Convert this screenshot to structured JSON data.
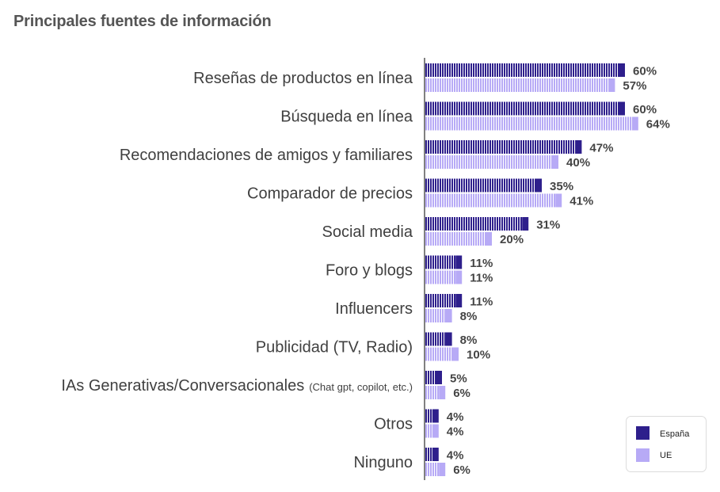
{
  "chart_data": {
    "type": "bar",
    "orientation": "horizontal",
    "title": "Principales fuentes de información",
    "categories": [
      "Reseñas de productos en línea",
      "Búsqueda en línea",
      "Recomendaciones de amigos y familiares",
      "Comparador de precios",
      "Social media",
      "Foro y blogs",
      "Influencers",
      "Publicidad (TV, Radio)",
      "IAs Generativas/Conversacionales",
      "Otros",
      "Ninguno"
    ],
    "category_notes": {
      "8": "(Chat gpt, copilot, etc.)"
    },
    "series": [
      {
        "name": "España",
        "color": "#2e1f8c",
        "values": [
          60,
          60,
          47,
          35,
          31,
          11,
          11,
          8,
          5,
          4,
          4
        ]
      },
      {
        "name": "UE",
        "color": "#b7aaf6",
        "values": [
          57,
          64,
          40,
          41,
          20,
          11,
          8,
          10,
          6,
          4,
          6
        ]
      }
    ],
    "value_suffix": "%",
    "grid": false,
    "legend": "bottom-right"
  }
}
